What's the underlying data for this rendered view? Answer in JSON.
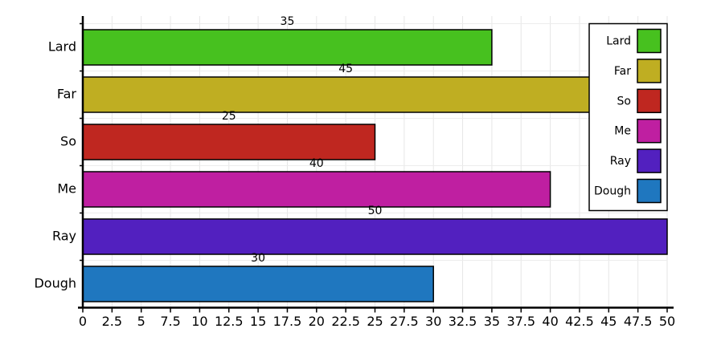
{
  "chart_data": {
    "type": "bar",
    "orientation": "horizontal",
    "categories": [
      "Lard",
      "Far",
      "So",
      "Me",
      "Ray",
      "Dough"
    ],
    "values": [
      35,
      45,
      25,
      40,
      50,
      30
    ],
    "colors": [
      "#47c11f",
      "#bfae22",
      "#bf2720",
      "#bf1fa1",
      "#5220bf",
      "#1f77bf"
    ],
    "xlim": [
      0,
      50
    ],
    "xticks": [
      0,
      2.5,
      5,
      7.5,
      10,
      12.5,
      15,
      17.5,
      20,
      22.5,
      25,
      27.5,
      30,
      32.5,
      35,
      37.5,
      40,
      42.5,
      45,
      47.5,
      50
    ],
    "grid": true,
    "legend": "upper right"
  }
}
